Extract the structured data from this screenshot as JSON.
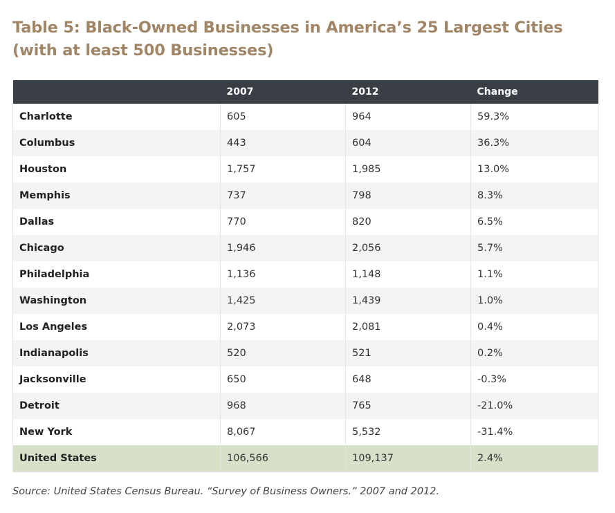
{
  "title": "Table 5: Black-Owned Businesses in America’s 25 Largest Cities (with at least 500 Businesses)",
  "table": {
    "headers": [
      "",
      "2007",
      "2012",
      "Change"
    ],
    "rows": [
      [
        "Charlotte",
        "605",
        "964",
        "59.3%"
      ],
      [
        "Columbus",
        "443",
        "604",
        "36.3%"
      ],
      [
        "Houston",
        "1,757",
        "1,985",
        "13.0%"
      ],
      [
        "Memphis",
        "737",
        "798",
        "8.3%"
      ],
      [
        "Dallas",
        "770",
        "820",
        "6.5%"
      ],
      [
        "Chicago",
        "1,946",
        "2,056",
        "5.7%"
      ],
      [
        "Philadelphia",
        "1,136",
        "1,148",
        "1.1%"
      ],
      [
        "Washington",
        "1,425",
        "1,439",
        "1.0%"
      ],
      [
        "Los Angeles",
        "2,073",
        "2,081",
        "0.4%"
      ],
      [
        "Indianapolis",
        "520",
        "521",
        "0.2%"
      ],
      [
        "Jacksonville",
        "650",
        "648",
        "-0.3%"
      ],
      [
        "Detroit",
        "968",
        "765",
        "-21.0%"
      ],
      [
        "New York",
        "8,067",
        "5,532",
        "-31.4%"
      ]
    ],
    "total": [
      "United States",
      "106,566",
      "109,137",
      "2.4%"
    ]
  },
  "source": "Source: United States Census Bureau. “Survey of Business Owners.” 2007 and 2012.",
  "colors": {
    "title": "#a08666",
    "header_bg": "#3a3f46",
    "row_alt_bg": "#f4f4f4",
    "total_bg": "#d7e1c9"
  }
}
